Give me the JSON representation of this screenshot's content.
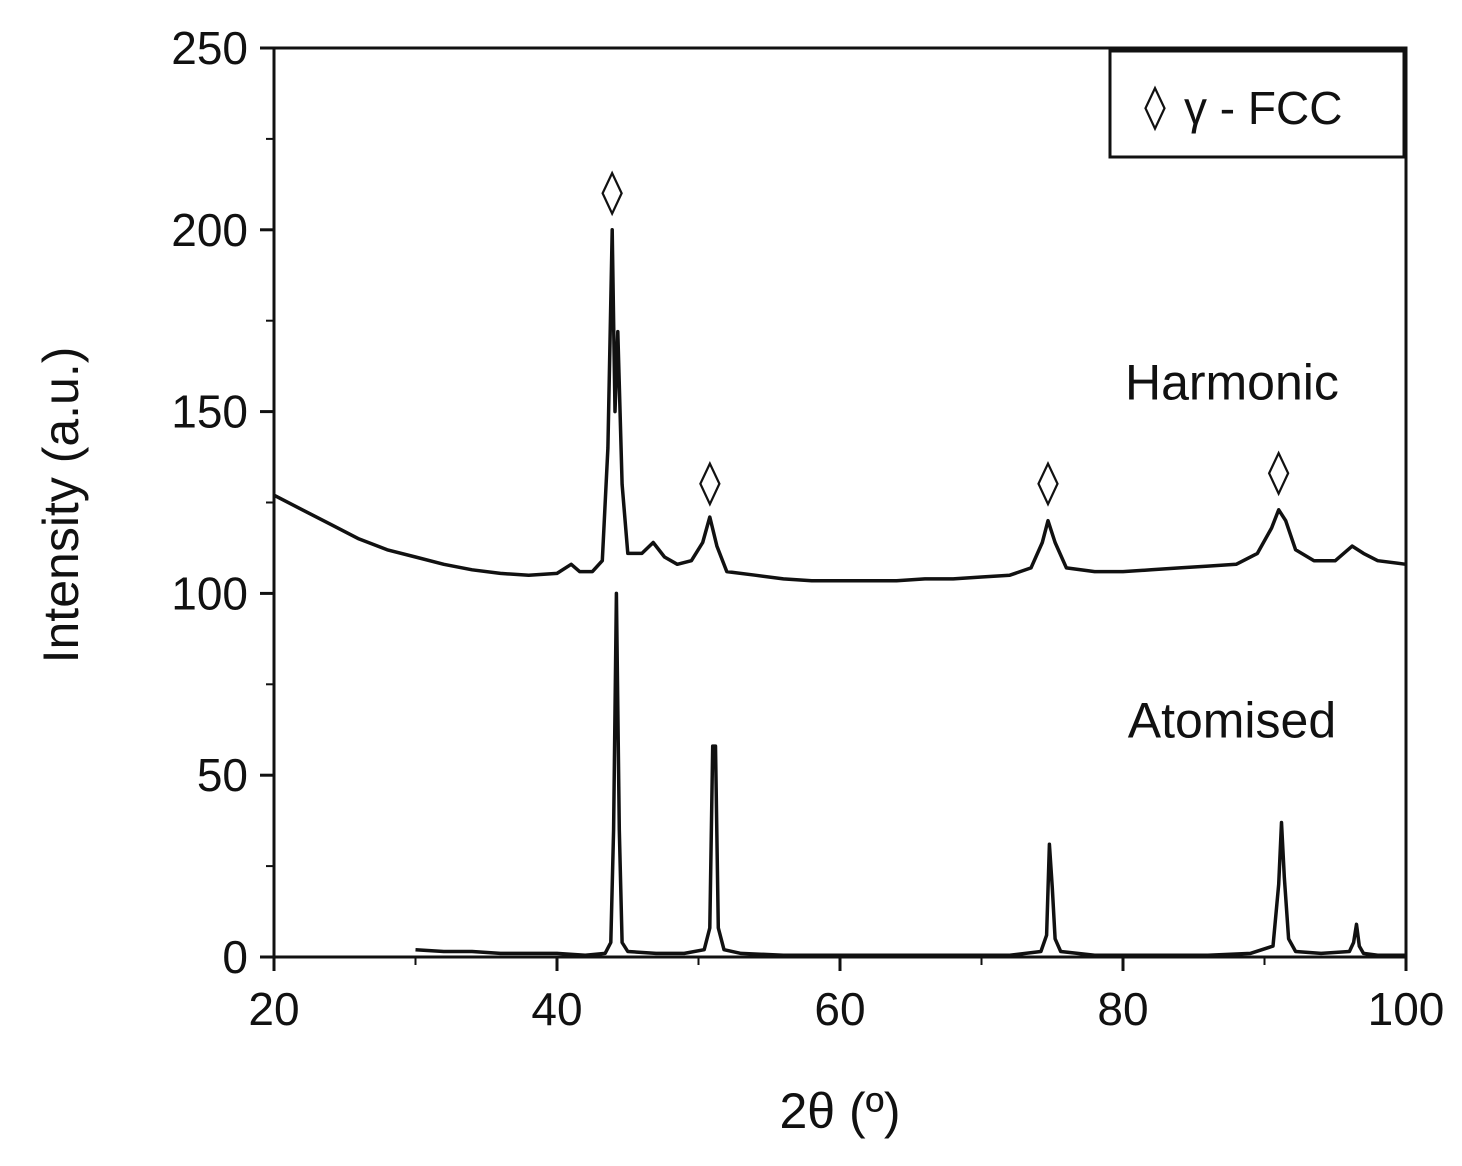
{
  "chart_data": {
    "type": "line",
    "title": "",
    "xlabel": "2θ (º)",
    "ylabel": "Intensity (a.u.)",
    "xlim": [
      20,
      100
    ],
    "ylim": [
      0,
      250
    ],
    "xticks": [
      20,
      40,
      60,
      80,
      100
    ],
    "yticks": [
      0,
      50,
      100,
      150,
      200,
      250
    ],
    "grid": false,
    "legend": {
      "placement": "top-right",
      "symbol": "◊",
      "label": "γ - FCC"
    },
    "series": [
      {
        "name": "Harmonic",
        "color": "#111111",
        "points": [
          [
            20,
            127
          ],
          [
            22,
            123
          ],
          [
            24,
            119
          ],
          [
            26,
            115
          ],
          [
            28,
            112
          ],
          [
            30,
            110
          ],
          [
            32,
            108
          ],
          [
            34,
            106.5
          ],
          [
            36,
            105.5
          ],
          [
            38,
            105
          ],
          [
            40,
            105.5
          ],
          [
            41,
            108
          ],
          [
            41.6,
            106
          ],
          [
            42.5,
            106
          ],
          [
            43.2,
            109
          ],
          [
            43.6,
            140
          ],
          [
            43.9,
            200
          ],
          [
            44.1,
            150
          ],
          [
            44.3,
            172
          ],
          [
            44.6,
            130
          ],
          [
            45,
            111
          ],
          [
            46,
            111
          ],
          [
            46.8,
            114
          ],
          [
            47.6,
            110
          ],
          [
            48.5,
            108
          ],
          [
            49.5,
            109
          ],
          [
            50.3,
            114
          ],
          [
            50.8,
            121
          ],
          [
            51.3,
            113
          ],
          [
            52,
            106
          ],
          [
            54,
            105
          ],
          [
            56,
            104
          ],
          [
            58,
            103.5
          ],
          [
            60,
            103.5
          ],
          [
            62,
            103.5
          ],
          [
            64,
            103.5
          ],
          [
            66,
            104
          ],
          [
            68,
            104
          ],
          [
            70,
            104.5
          ],
          [
            72,
            105
          ],
          [
            73.5,
            107
          ],
          [
            74.3,
            114
          ],
          [
            74.7,
            120
          ],
          [
            75.2,
            114
          ],
          [
            76,
            107
          ],
          [
            78,
            106
          ],
          [
            80,
            106
          ],
          [
            82,
            106.5
          ],
          [
            84,
            107
          ],
          [
            86,
            107.5
          ],
          [
            88,
            108
          ],
          [
            89.5,
            111
          ],
          [
            90.5,
            118
          ],
          [
            91,
            123
          ],
          [
            91.5,
            120
          ],
          [
            92.2,
            112
          ],
          [
            93.5,
            109
          ],
          [
            95,
            109
          ],
          [
            96.2,
            113
          ],
          [
            97,
            111
          ],
          [
            98,
            109
          ],
          [
            100,
            108
          ]
        ]
      },
      {
        "name": "Atomised",
        "color": "#111111",
        "points": [
          [
            30,
            2
          ],
          [
            32,
            1.5
          ],
          [
            34,
            1.5
          ],
          [
            36,
            1
          ],
          [
            38,
            1
          ],
          [
            40,
            1
          ],
          [
            42,
            0.5
          ],
          [
            43.4,
            1
          ],
          [
            43.8,
            4
          ],
          [
            44,
            35
          ],
          [
            44.2,
            100
          ],
          [
            44.4,
            35
          ],
          [
            44.6,
            4
          ],
          [
            45,
            1.5
          ],
          [
            47,
            1
          ],
          [
            49,
            1
          ],
          [
            50.4,
            2
          ],
          [
            50.8,
            8
          ],
          [
            51,
            58
          ],
          [
            51.2,
            58
          ],
          [
            51.4,
            8
          ],
          [
            51.8,
            2
          ],
          [
            53,
            1
          ],
          [
            56,
            0.5
          ],
          [
            60,
            0.5
          ],
          [
            64,
            0.5
          ],
          [
            68,
            0.5
          ],
          [
            72,
            0.5
          ],
          [
            74.2,
            1.5
          ],
          [
            74.6,
            6
          ],
          [
            74.8,
            31
          ],
          [
            75.0,
            19
          ],
          [
            75.2,
            5
          ],
          [
            75.6,
            1.5
          ],
          [
            78,
            0.5
          ],
          [
            82,
            0.5
          ],
          [
            86,
            0.5
          ],
          [
            89,
            1
          ],
          [
            90.6,
            3
          ],
          [
            91,
            20
          ],
          [
            91.2,
            37
          ],
          [
            91.4,
            22
          ],
          [
            91.7,
            5
          ],
          [
            92.2,
            1.5
          ],
          [
            94,
            1
          ],
          [
            96,
            1.5
          ],
          [
            96.3,
            4
          ],
          [
            96.5,
            9
          ],
          [
            96.7,
            3
          ],
          [
            97,
            1
          ],
          [
            98,
            0.5
          ],
          [
            100,
            0.5
          ]
        ]
      }
    ],
    "peak_markers": [
      {
        "x": 43.9,
        "y": 211,
        "symbol": "◊"
      },
      {
        "x": 50.8,
        "y": 131,
        "symbol": "◊"
      },
      {
        "x": 74.7,
        "y": 131,
        "symbol": "◊"
      },
      {
        "x": 91.0,
        "y": 134,
        "symbol": "◊"
      }
    ],
    "series_labels": [
      {
        "text": "Harmonic",
        "x": 87.7,
        "y": 158
      },
      {
        "text": "Atomised",
        "x": 87.7,
        "y": 65
      }
    ]
  }
}
